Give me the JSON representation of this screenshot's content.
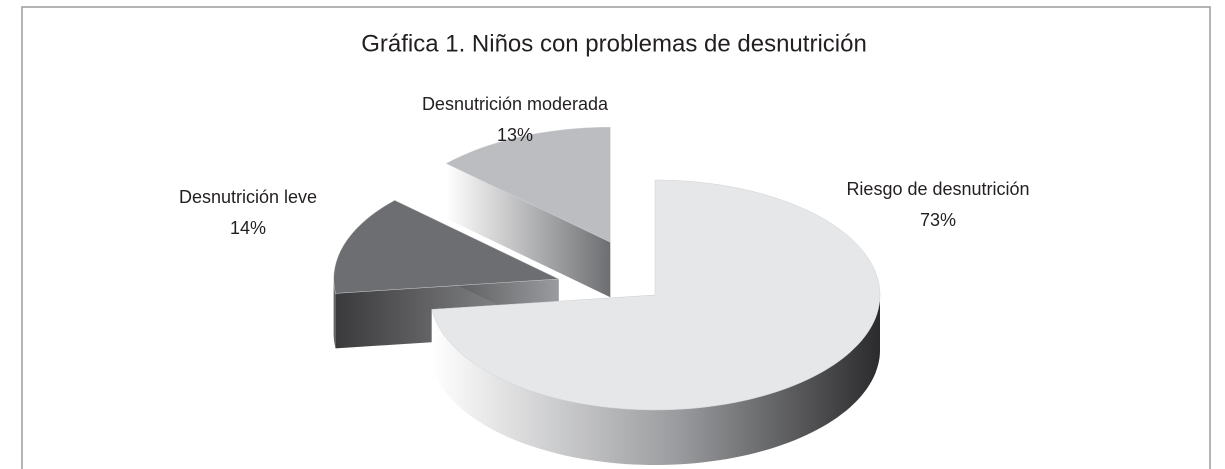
{
  "chart_data": {
    "type": "pie3d",
    "title": "Gráfica 1. Niños con problemas de desnutrición",
    "categories": [
      "Riesgo de desnutrición",
      "Desnutrición leve",
      "Desnutrición moderada"
    ],
    "values": [
      73,
      14,
      13
    ],
    "value_labels": [
      "73%",
      "14%",
      "13%"
    ],
    "colors": [
      "#e6e7e8",
      "#6d6e71",
      "#bcbdc0"
    ]
  }
}
